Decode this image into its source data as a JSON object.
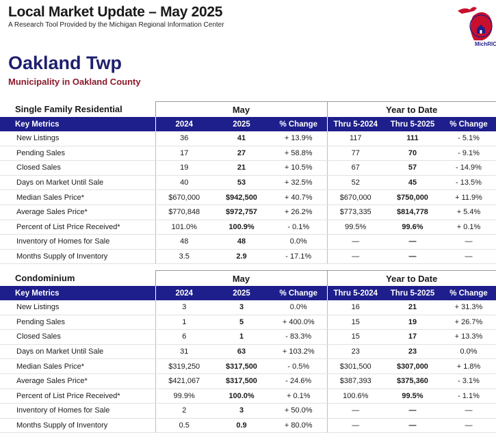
{
  "header": {
    "title": "Local Market Update – May 2025",
    "subtitle": "A Research Tool Provided by the Michigan Regional Information Center",
    "logo_text": "MichRIC"
  },
  "municipality": {
    "name": "Oakland Twp",
    "subtitle": "Municipality in Oakland County"
  },
  "colors": {
    "header_bar": "#1e1e8c",
    "title_navy": "#1e1f6e",
    "subtitle_red": "#8b1a2b"
  },
  "columns": {
    "key_metrics": "Key Metrics",
    "month_group": "May",
    "ytd_group": "Year to Date",
    "m_2024": "2024",
    "m_2025": "2025",
    "pct_change": "% Change",
    "ytd_2024": "Thru 5-2024",
    "ytd_2025": "Thru 5-2025"
  },
  "sections": [
    {
      "title": "Single Family Residential",
      "rows": [
        {
          "label": "New Listings",
          "m24": "36",
          "m25": "41",
          "mchg": "+ 13.9%",
          "y24": "117",
          "y25": "111",
          "ychg": "- 5.1%"
        },
        {
          "label": "Pending Sales",
          "m24": "17",
          "m25": "27",
          "mchg": "+ 58.8%",
          "y24": "77",
          "y25": "70",
          "ychg": "- 9.1%"
        },
        {
          "label": "Closed Sales",
          "m24": "19",
          "m25": "21",
          "mchg": "+ 10.5%",
          "y24": "67",
          "y25": "57",
          "ychg": "- 14.9%"
        },
        {
          "label": "Days on Market Until Sale",
          "m24": "40",
          "m25": "53",
          "mchg": "+ 32.5%",
          "y24": "52",
          "y25": "45",
          "ychg": "- 13.5%"
        },
        {
          "label": "Median Sales Price*",
          "m24": "$670,000",
          "m25": "$942,500",
          "mchg": "+ 40.7%",
          "y24": "$670,000",
          "y25": "$750,000",
          "ychg": "+ 11.9%"
        },
        {
          "label": "Average Sales Price*",
          "m24": "$770,848",
          "m25": "$972,757",
          "mchg": "+ 26.2%",
          "y24": "$773,335",
          "y25": "$814,778",
          "ychg": "+ 5.4%"
        },
        {
          "label": "Percent of List Price Received*",
          "m24": "101.0%",
          "m25": "100.9%",
          "mchg": "- 0.1%",
          "y24": "99.5%",
          "y25": "99.6%",
          "ychg": "+ 0.1%"
        },
        {
          "label": "Inventory of Homes for Sale",
          "m24": "48",
          "m25": "48",
          "mchg": "0.0%",
          "y24": "—",
          "y25": "—",
          "ychg": "—"
        },
        {
          "label": "Months Supply of Inventory",
          "m24": "3.5",
          "m25": "2.9",
          "mchg": "- 17.1%",
          "y24": "—",
          "y25": "—",
          "ychg": "—"
        }
      ]
    },
    {
      "title": "Condominium",
      "rows": [
        {
          "label": "New Listings",
          "m24": "3",
          "m25": "3",
          "mchg": "0.0%",
          "y24": "16",
          "y25": "21",
          "ychg": "+ 31.3%"
        },
        {
          "label": "Pending Sales",
          "m24": "1",
          "m25": "5",
          "mchg": "+ 400.0%",
          "y24": "15",
          "y25": "19",
          "ychg": "+ 26.7%"
        },
        {
          "label": "Closed Sales",
          "m24": "6",
          "m25": "1",
          "mchg": "- 83.3%",
          "y24": "15",
          "y25": "17",
          "ychg": "+ 13.3%"
        },
        {
          "label": "Days on Market Until Sale",
          "m24": "31",
          "m25": "63",
          "mchg": "+ 103.2%",
          "y24": "23",
          "y25": "23",
          "ychg": "0.0%"
        },
        {
          "label": "Median Sales Price*",
          "m24": "$319,250",
          "m25": "$317,500",
          "mchg": "- 0.5%",
          "y24": "$301,500",
          "y25": "$307,000",
          "ychg": "+ 1.8%"
        },
        {
          "label": "Average Sales Price*",
          "m24": "$421,067",
          "m25": "$317,500",
          "mchg": "- 24.6%",
          "y24": "$387,393",
          "y25": "$375,360",
          "ychg": "- 3.1%"
        },
        {
          "label": "Percent of List Price Received*",
          "m24": "99.9%",
          "m25": "100.0%",
          "mchg": "+ 0.1%",
          "y24": "100.6%",
          "y25": "99.5%",
          "ychg": "- 1.1%"
        },
        {
          "label": "Inventory of Homes for Sale",
          "m24": "2",
          "m25": "3",
          "mchg": "+ 50.0%",
          "y24": "—",
          "y25": "—",
          "ychg": "—"
        },
        {
          "label": "Months Supply of Inventory",
          "m24": "0.5",
          "m25": "0.9",
          "mchg": "+ 80.0%",
          "y24": "—",
          "y25": "—",
          "ychg": "—"
        }
      ]
    }
  ]
}
